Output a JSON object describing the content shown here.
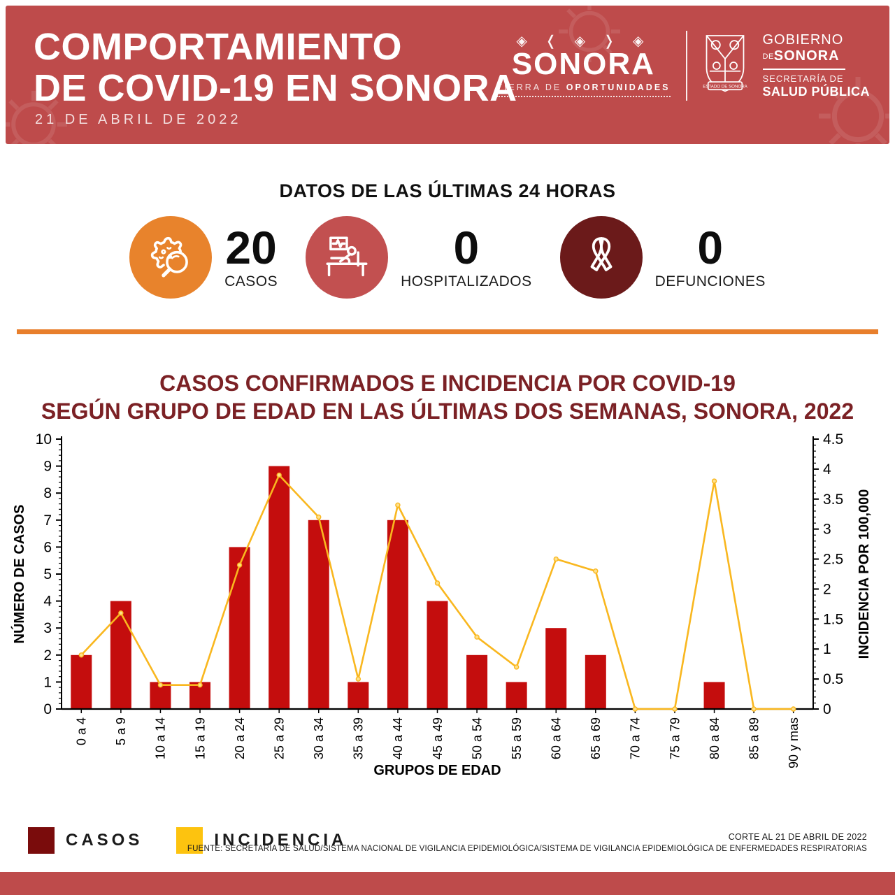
{
  "header": {
    "title_line1": "COMPORTAMIENTO",
    "title_line2": "DE COVID-19 EN SONORA",
    "date": "21 DE ABRIL DE 2022",
    "brand": {
      "sonora_ornament": "◈ ❬ ◈ ❭ ◈",
      "sonora_wordmark": "SONORA",
      "tagline_light": "TIERRA DE",
      "tagline_bold": "OPORTUNIDADES",
      "gov_line1": "GOBIERNO",
      "gov_line2_small": "DE",
      "gov_line2_bold": "SONORA",
      "sec_line1": "SECRETARÍA DE",
      "sec_line2": "SALUD PÚBLICA",
      "shield_caption": "ESTADO DE SONORA"
    }
  },
  "stats": {
    "title": "DATOS DE LAS ÚLTIMAS 24 HORAS",
    "items": [
      {
        "value": "20",
        "label": "CASOS",
        "icon": "virus-magnifier-icon",
        "circle_color": "#E8832C"
      },
      {
        "value": "0",
        "label": "HOSPITALIZADOS",
        "icon": "hospital-bed-icon",
        "circle_color": "#C25050"
      },
      {
        "value": "0",
        "label": "DEFUNCIONES",
        "icon": "ribbon-icon",
        "circle_color": "#6B1A1A"
      }
    ]
  },
  "chart": {
    "title_line1": "CASOS CONFIRMADOS E INCIDENCIA POR COVID-19",
    "title_line2": "SEGÚN GRUPO DE EDAD EN LAS ÚLTIMAS DOS SEMANAS, SONORA, 2022"
  },
  "chart_data": {
    "type": "bar+line",
    "categories": [
      "0 a 4",
      "5 a 9",
      "10 a 14",
      "15 a 19",
      "20 a 24",
      "25 a 29",
      "30 a 34",
      "35 a 39",
      "40 a 44",
      "45 a 49",
      "50 a 54",
      "55 a 59",
      "60 a 64",
      "65 a 69",
      "70 a 74",
      "75 a 79",
      "80 a 84",
      "85 a 89",
      "90 y mas"
    ],
    "series": [
      {
        "name": "CASOS",
        "type": "bar",
        "axis": "left",
        "color": "#C40D0D",
        "values": [
          2,
          4,
          1,
          1,
          6,
          9,
          7,
          1,
          7,
          4,
          2,
          1,
          3,
          2,
          0,
          0,
          1,
          0,
          0
        ]
      },
      {
        "name": "INCIDENCIA",
        "type": "line",
        "axis": "right",
        "color": "#F9B71F",
        "values": [
          0.9,
          1.6,
          0.4,
          0.4,
          2.4,
          3.9,
          3.2,
          0.5,
          3.4,
          2.1,
          1.2,
          0.7,
          2.5,
          2.3,
          0,
          0,
          3.8,
          0,
          0
        ]
      }
    ],
    "xlabel": "GRUPOS DE EDAD",
    "ylabel_left": "NÚMERO DE CASOS",
    "ylabel_right": "INCIDENCIA POR 100,000",
    "ylim_left": [
      0,
      10
    ],
    "ylim_right": [
      0,
      4.5
    ],
    "left_ticks": [
      0,
      1,
      2,
      3,
      4,
      5,
      6,
      7,
      8,
      9,
      10
    ],
    "right_ticks": [
      0,
      0.5,
      1,
      1.5,
      2,
      2.5,
      3,
      3.5,
      4,
      4.5
    ],
    "grid": false,
    "legend_position": "bottom-left"
  },
  "legend": {
    "items": [
      {
        "label": "CASOS",
        "color": "#7A0C0C"
      },
      {
        "label": "INCIDENCIA",
        "color": "#FDC30F"
      }
    ]
  },
  "footer": {
    "corte": "CORTE AL 21 DE ABRIL DE 2022",
    "fuente": "FUENTE: SECRETARÍA DE SALUD/SISTEMA NACIONAL DE VIGILANCIA EPIDEMIOLÓGICA/SISTEMA DE VIGILANCIA EPIDEMIOLÓGICA DE ENFERMEDADES RESPIRATORIAS"
  }
}
